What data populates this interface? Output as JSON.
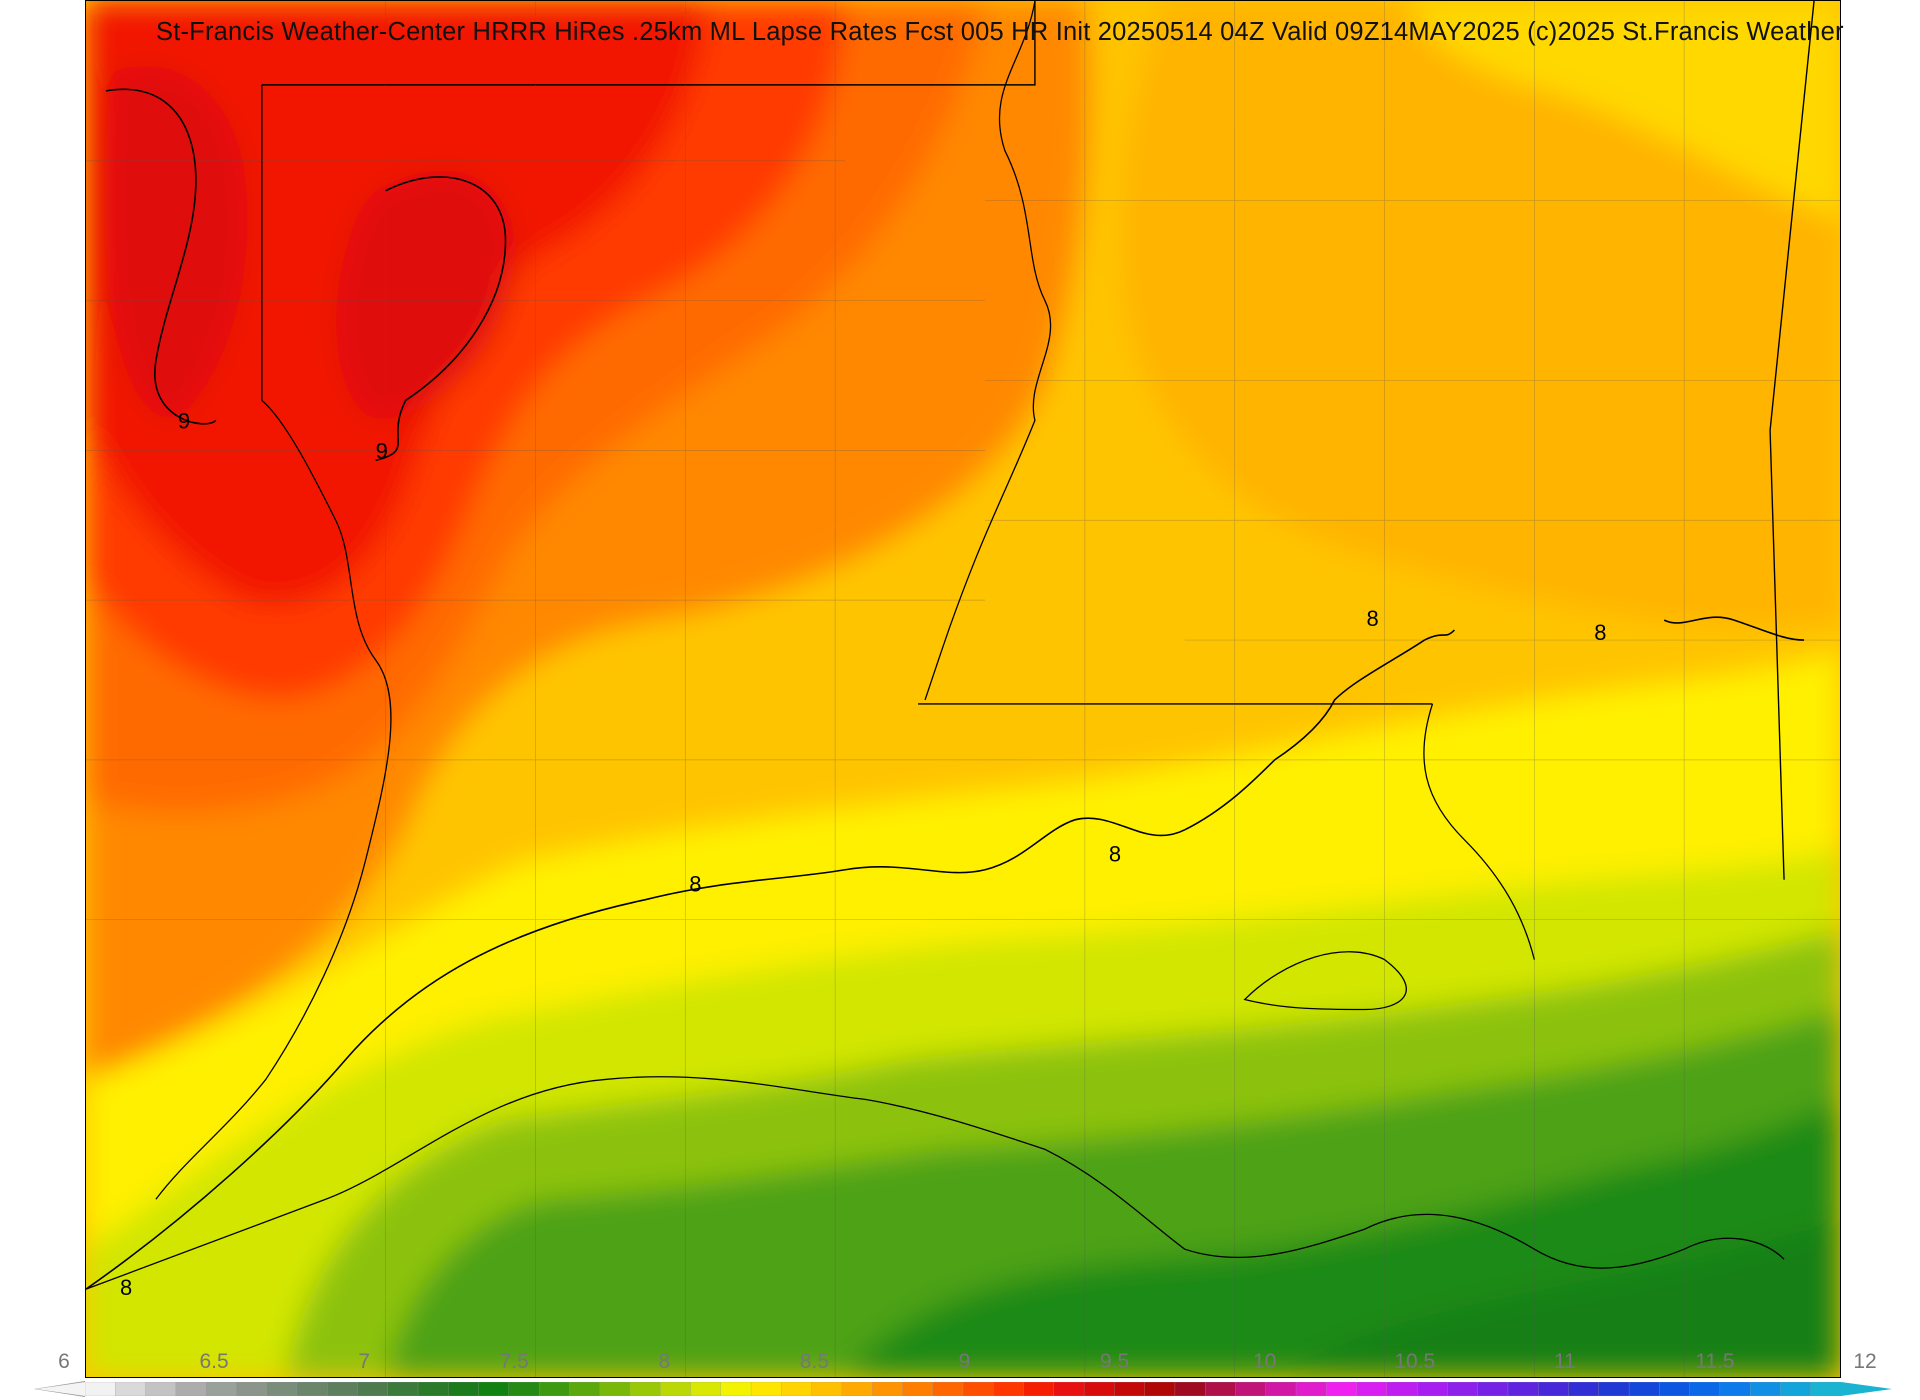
{
  "title": "St-Francis Weather-Center HRRR HiRes .25km ML Lapse Rates  Fcst 005 HR Init 20250514 04Z  Valid 09Z14MAY2025   (c)2025 St.Francis Weather",
  "colorbar": {
    "min": 6,
    "max": 12,
    "tick_labels": [
      "6",
      "6.5",
      "7",
      "7.5",
      "8",
      "8.5",
      "9",
      "9.5",
      "10",
      "10.5",
      "11",
      "11.5",
      "12"
    ],
    "colors": [
      "#f2f2f2",
      "#d9d9d9",
      "#c3c3c3",
      "#acacac",
      "#9aa09a",
      "#8b958b",
      "#7a8c7a",
      "#6a856a",
      "#5d7f5d",
      "#4e7a4e",
      "#3c7a3c",
      "#2a7a2a",
      "#1b7a1b",
      "#118211",
      "#248a14",
      "#3d9a10",
      "#5aa80c",
      "#79b808",
      "#99c806",
      "#b9d804",
      "#d8e802",
      "#f3f300",
      "#ffe600",
      "#ffd400",
      "#ffc000",
      "#ffaa00",
      "#ff9400",
      "#ff7e00",
      "#ff6600",
      "#ff4e00",
      "#ff3600",
      "#f51e00",
      "#e81010",
      "#d80a0a",
      "#c40808",
      "#b00606",
      "#a00a20",
      "#b0104a",
      "#c01478",
      "#d018a4",
      "#e01ccc",
      "#f020f0",
      "#d81ef0",
      "#bf1ef0",
      "#a61ef0",
      "#8e20ec",
      "#7622e6",
      "#5e24e0",
      "#4628da",
      "#302ed4",
      "#2038d4",
      "#1446dc",
      "#0c56e2",
      "#0a68e8",
      "#0c7aea",
      "#1090e4",
      "#14a4dc",
      "#18b4d2"
    ]
  },
  "contour_labels": [
    "9",
    "9",
    "8",
    "8",
    "8",
    "8",
    "8"
  ]
}
